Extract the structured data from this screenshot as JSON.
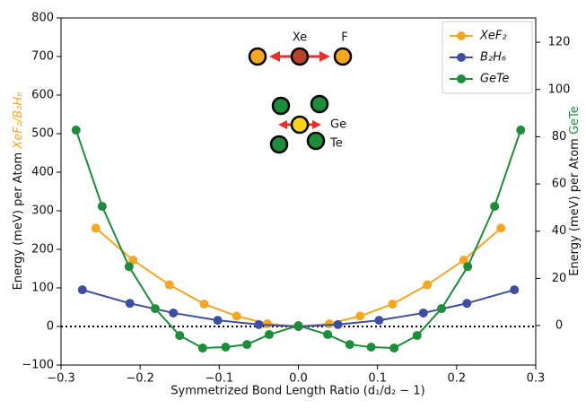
{
  "chart_data": {
    "type": "line",
    "xlabel": "Symmetrized Bond Length Ratio (d₁/d₂ − 1)",
    "ylabel": "Energy (meV) per Atom",
    "ylabel_highlight": "XeF₂/B₂H₆",
    "y2label": "Energy (meV) per Atom",
    "y2label_highlight": "GeTe",
    "xlim": [
      -0.3,
      0.3
    ],
    "xticks": [
      {
        "value": -0.3,
        "label": "−0.3"
      },
      {
        "value": -0.2,
        "label": "−0.2"
      },
      {
        "value": -0.1,
        "label": "−0.1"
      },
      {
        "value": 0,
        "label": "0.0"
      },
      0.1,
      0.2,
      0.3
    ],
    "ylim": [
      -100,
      800
    ],
    "yticks": [
      {
        "value": -100,
        "label": "−100"
      },
      0,
      100,
      200,
      300,
      400,
      500,
      600,
      700,
      800
    ],
    "y2lim": [
      -16.7,
      130.3
    ],
    "y2ticks": [
      0,
      20,
      40,
      60,
      80,
      100,
      120
    ],
    "legend": "upper right",
    "annotations": [
      "Xe",
      "F",
      "Ge",
      "Te"
    ],
    "series": [
      {
        "name": "XeF₂",
        "color": "#f5a623",
        "x": [
          -0.256,
          -0.209,
          -0.163,
          -0.119,
          -0.078,
          -0.039,
          0,
          0.039,
          0.078,
          0.119,
          0.163,
          0.209,
          0.256
        ],
        "values": [
          255,
          172,
          108,
          58,
          27,
          7,
          0,
          7,
          27,
          58,
          108,
          172,
          255
        ]
      },
      {
        "name": "B₂H₆",
        "color": "#3d4ea1",
        "x": [
          -0.273,
          -0.213,
          -0.158,
          -0.102,
          -0.05,
          0,
          0.05,
          0.102,
          0.158,
          0.213,
          0.273
        ],
        "values": [
          95,
          60,
          35,
          16,
          5,
          0,
          5,
          16,
          35,
          60,
          95
        ]
      },
      {
        "name": "GeTe",
        "color": "#1e8c3a",
        "axis": "y2",
        "x": [
          -0.281,
          -0.248,
          -0.214,
          -0.181,
          -0.15,
          -0.121,
          -0.092,
          -0.065,
          -0.037,
          0,
          0.037,
          0.065,
          0.092,
          0.121,
          0.15,
          0.181,
          0.214,
          0.248,
          0.281
        ],
        "values": [
          82.8,
          50.5,
          25,
          7.2,
          -4.2,
          -9.5,
          -9.1,
          -8,
          -3.8,
          0,
          -3.8,
          -8,
          -9.1,
          -9.5,
          -4.2,
          7.2,
          25,
          50.5,
          82.8
        ]
      }
    ]
  }
}
